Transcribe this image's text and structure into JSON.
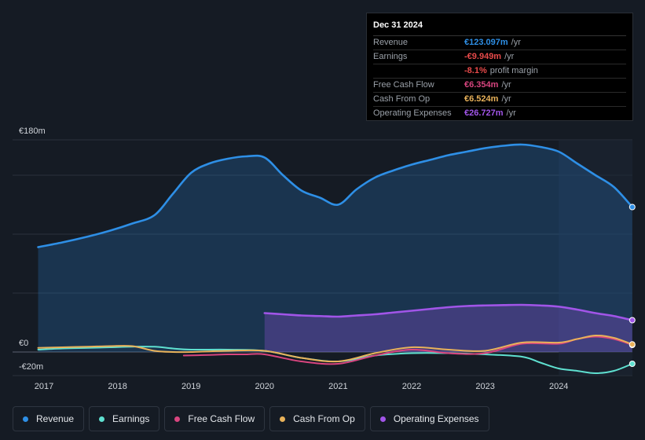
{
  "tooltip": {
    "date": "Dec 31 2024",
    "rows": [
      {
        "label": "Revenue",
        "value": "€123.097m",
        "unit": "/yr",
        "color": "#2e8fe6"
      },
      {
        "label": "Earnings",
        "value": "-€9.949m",
        "unit": "/yr",
        "color": "#e84a4a"
      },
      {
        "label": "",
        "value": "-8.1%",
        "unit": "profit margin",
        "color": "#e84a4a"
      },
      {
        "label": "Free Cash Flow",
        "value": "€6.354m",
        "unit": "/yr",
        "color": "#d8457f"
      },
      {
        "label": "Cash From Op",
        "value": "€6.524m",
        "unit": "/yr",
        "color": "#e9b25a"
      },
      {
        "label": "Operating Expenses",
        "value": "€26.727m",
        "unit": "/yr",
        "color": "#a155e8"
      }
    ]
  },
  "legend": [
    {
      "name": "Revenue",
      "color": "#2e8fe6"
    },
    {
      "name": "Earnings",
      "color": "#5fe0d0"
    },
    {
      "name": "Free Cash Flow",
      "color": "#d8457f"
    },
    {
      "name": "Cash From Op",
      "color": "#e9b25a"
    },
    {
      "name": "Operating Expenses",
      "color": "#a155e8"
    }
  ],
  "chart_data": {
    "type": "area",
    "title": "",
    "xlabel": "",
    "ylabel": "",
    "ylim": [
      -20,
      180
    ],
    "y_tick_labels": [
      "€180m",
      "€0",
      "-€20m"
    ],
    "y_ticks": [
      180,
      0,
      -20
    ],
    "x_tick_labels": [
      "2017",
      "2018",
      "2019",
      "2020",
      "2021",
      "2022",
      "2023",
      "2024"
    ],
    "x_ticks": [
      2017,
      2018,
      2019,
      2020,
      2021,
      2022,
      2023,
      2024
    ],
    "xlim": [
      2016.6,
      2025.0
    ],
    "highlight_from": 2024.0,
    "series": [
      {
        "name": "Revenue",
        "color": "#2e8fe6",
        "area": true,
        "x": [
          2016.92,
          2017.25,
          2017.6,
          2017.9,
          2018.2,
          2018.5,
          2018.75,
          2019.0,
          2019.25,
          2019.5,
          2019.75,
          2020.0,
          2020.25,
          2020.5,
          2020.75,
          2021.0,
          2021.25,
          2021.5,
          2021.75,
          2022.0,
          2022.25,
          2022.5,
          2022.75,
          2023.0,
          2023.25,
          2023.5,
          2023.75,
          2024.0,
          2024.25,
          2024.5,
          2024.75,
          2025.0
        ],
        "y": [
          89,
          93,
          98,
          103,
          109,
          116,
          134,
          152,
          160,
          164,
          166,
          165,
          150,
          137,
          131,
          125,
          138,
          148,
          154,
          159,
          163,
          167,
          170,
          173,
          175,
          176,
          174,
          170,
          160,
          150,
          140,
          123
        ]
      },
      {
        "name": "Operating Expenses",
        "color": "#a155e8",
        "area": true,
        "x": [
          2020.0,
          2020.25,
          2020.5,
          2020.75,
          2021.0,
          2021.25,
          2021.5,
          2021.75,
          2022.0,
          2022.25,
          2022.5,
          2022.75,
          2023.0,
          2023.25,
          2023.5,
          2023.75,
          2024.0,
          2024.25,
          2024.5,
          2024.75,
          2025.0
        ],
        "y": [
          33,
          32,
          31,
          30.5,
          30,
          31,
          32,
          33.5,
          35,
          36.5,
          38,
          39,
          39.5,
          39.8,
          40,
          39.5,
          38.5,
          36,
          33,
          30.5,
          27
        ]
      },
      {
        "name": "Earnings",
        "color": "#5fe0d0",
        "area": false,
        "x": [
          2016.92,
          2017.25,
          2017.6,
          2017.9,
          2018.2,
          2018.5,
          2018.75,
          2019.0,
          2019.5,
          2020.0,
          2020.5,
          2021.0,
          2021.5,
          2022.0,
          2022.5,
          2023.0,
          2023.5,
          2023.75,
          2024.0,
          2024.25,
          2024.5,
          2024.75,
          2025.0
        ],
        "y": [
          2,
          3,
          3.5,
          4,
          4.5,
          4.5,
          3,
          2,
          2,
          1,
          -5,
          -8,
          -3,
          -1,
          -1,
          -2,
          -4,
          -9,
          -14,
          -16,
          -18,
          -16,
          -10
        ]
      },
      {
        "name": "Free Cash Flow",
        "color": "#d8457f",
        "area": false,
        "x": [
          2018.9,
          2019.25,
          2019.5,
          2019.75,
          2020.0,
          2020.5,
          2021.0,
          2021.5,
          2022.0,
          2022.5,
          2023.0,
          2023.5,
          2024.0,
          2024.25,
          2024.5,
          2024.75,
          2025.0
        ],
        "y": [
          -3,
          -2.5,
          -2,
          -2,
          -2,
          -8,
          -10,
          -3,
          2,
          -1,
          -1,
          7,
          7,
          11,
          13,
          11,
          6
        ]
      },
      {
        "name": "Cash From Op",
        "color": "#e9b25a",
        "area": false,
        "x": [
          2016.92,
          2017.25,
          2017.6,
          2017.9,
          2018.2,
          2018.5,
          2018.75,
          2019.0,
          2019.5,
          2020.0,
          2020.5,
          2021.0,
          2021.5,
          2022.0,
          2022.5,
          2023.0,
          2023.5,
          2024.0,
          2024.25,
          2024.5,
          2024.75,
          2025.0
        ],
        "y": [
          3.5,
          4,
          4.5,
          5,
          5,
          1,
          0,
          0,
          1,
          1,
          -5,
          -8,
          -1,
          4,
          2,
          1,
          8,
          8,
          11,
          14,
          12,
          6.5
        ]
      }
    ]
  }
}
